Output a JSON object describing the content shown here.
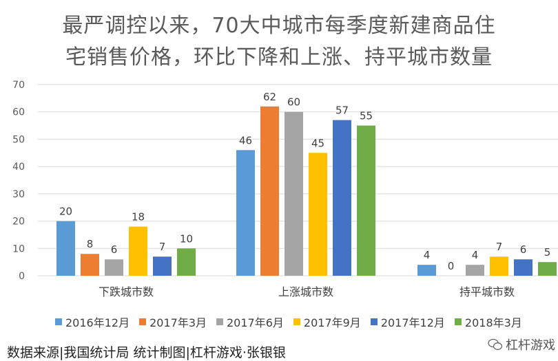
{
  "chart_data": {
    "type": "bar",
    "title_lines": [
      "最严调控以来，70大中城市每季度新建商品住",
      "宅销售价格，环比下降和上涨、持平城市数量"
    ],
    "categories": [
      "下跌城市数",
      "上涨城市数",
      "持平城市数"
    ],
    "series": [
      {
        "name": "2016年12月",
        "color": "#5B9BD5",
        "values": [
          20,
          46,
          4
        ]
      },
      {
        "name": "2017年3月",
        "color": "#ED7D31",
        "values": [
          8,
          62,
          0
        ]
      },
      {
        "name": "2017年6月",
        "color": "#A5A5A5",
        "values": [
          6,
          60,
          4
        ]
      },
      {
        "name": "2017年9月",
        "color": "#FFC000",
        "values": [
          18,
          45,
          7
        ]
      },
      {
        "name": "2017年12月",
        "color": "#4472C4",
        "values": [
          7,
          57,
          6
        ]
      },
      {
        "name": "2018年3月",
        "color": "#70AD47",
        "values": [
          10,
          55,
          5
        ]
      }
    ],
    "y_ticks": [
      "70",
      "60",
      "50",
      "40",
      "30",
      "20",
      "10",
      "0"
    ],
    "ylim": [
      0,
      70
    ],
    "grid": true,
    "legend_position": "bottom"
  },
  "footer": {
    "source": "数据来源|我国统计局  统计制图|杠杆游戏·张银银"
  },
  "watermark": {
    "text": "杠杆游戏"
  }
}
